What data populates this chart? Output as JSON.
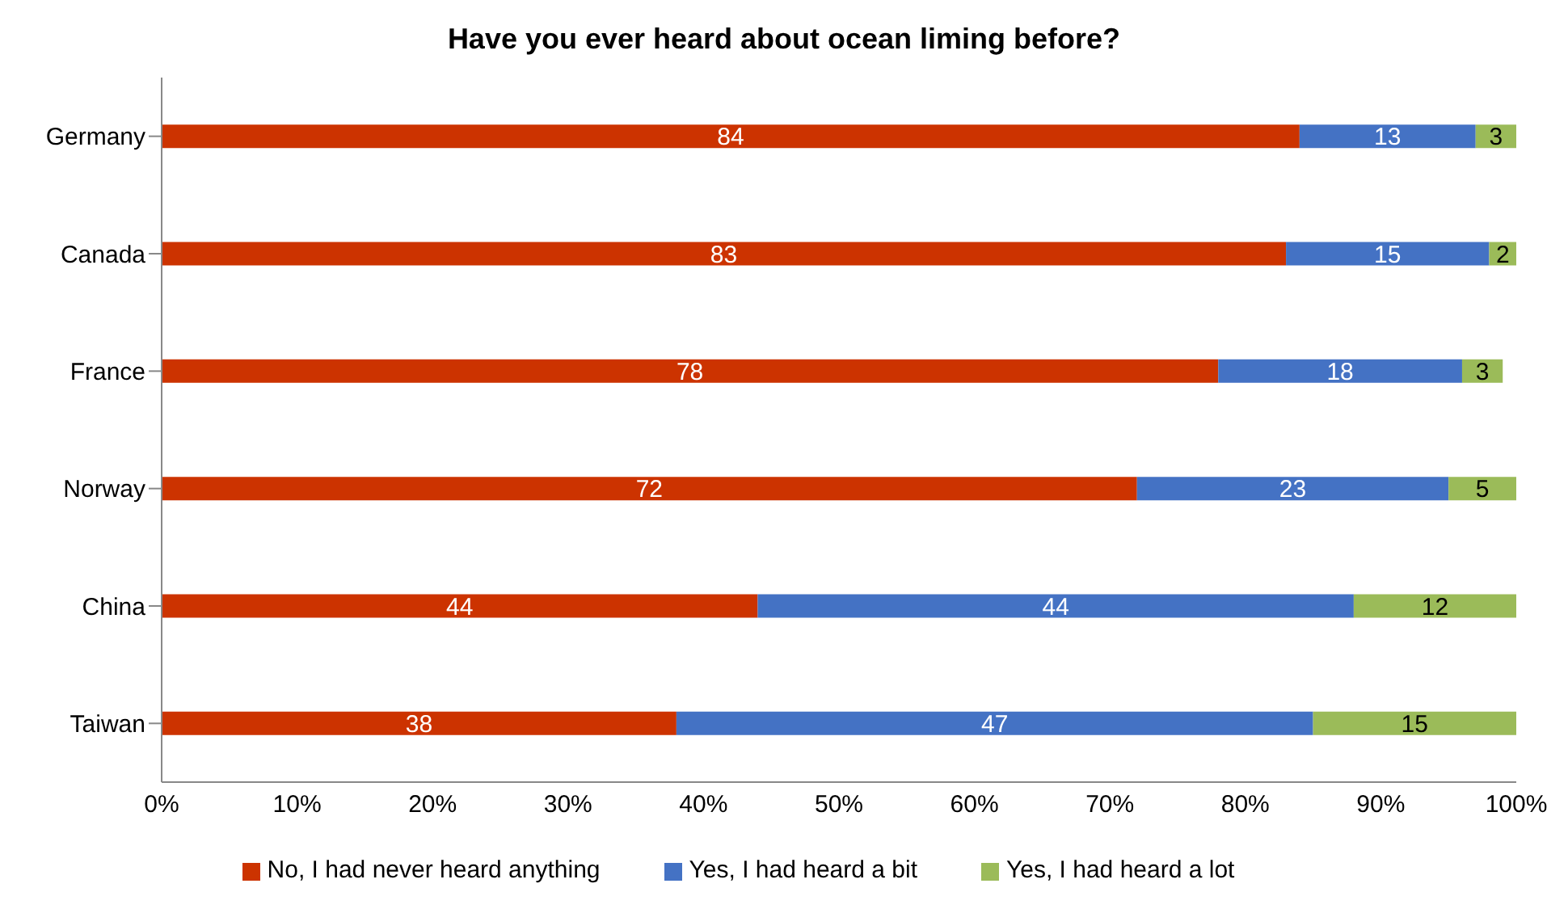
{
  "chart_data": {
    "type": "bar",
    "orientation": "horizontal",
    "stacked": true,
    "title": "Have you ever heard about ocean liming before?",
    "categories": [
      "Germany",
      "Canada",
      "France",
      "Norway",
      "China",
      "Taiwan"
    ],
    "series": [
      {
        "name": "No, I had never heard anything",
        "color": "#cc3300",
        "values": [
          84,
          83,
          78,
          72,
          44,
          38
        ]
      },
      {
        "name": "Yes, I had heard a bit",
        "color": "#4472c4",
        "values": [
          13,
          15,
          18,
          23,
          44,
          47
        ]
      },
      {
        "name": "Yes, I had heard a lot",
        "color": "#9bbb59",
        "values": [
          3,
          2,
          3,
          5,
          12,
          15
        ]
      }
    ],
    "xlim": [
      0,
      100
    ],
    "xticks": [
      {
        "value": 0,
        "label": "0%"
      },
      {
        "value": 10,
        "label": "10%"
      },
      {
        "value": 20,
        "label": "20%"
      },
      {
        "value": 30,
        "label": "30%"
      },
      {
        "value": 40,
        "label": "40%"
      },
      {
        "value": 50,
        "label": "50%"
      },
      {
        "value": 60,
        "label": "60%"
      },
      {
        "value": 70,
        "label": "70%"
      },
      {
        "value": 80,
        "label": "80%"
      },
      {
        "value": 90,
        "label": "90%"
      },
      {
        "value": 100,
        "label": "100%"
      }
    ],
    "grid": false,
    "legend": "bottom",
    "data_labels": true
  }
}
